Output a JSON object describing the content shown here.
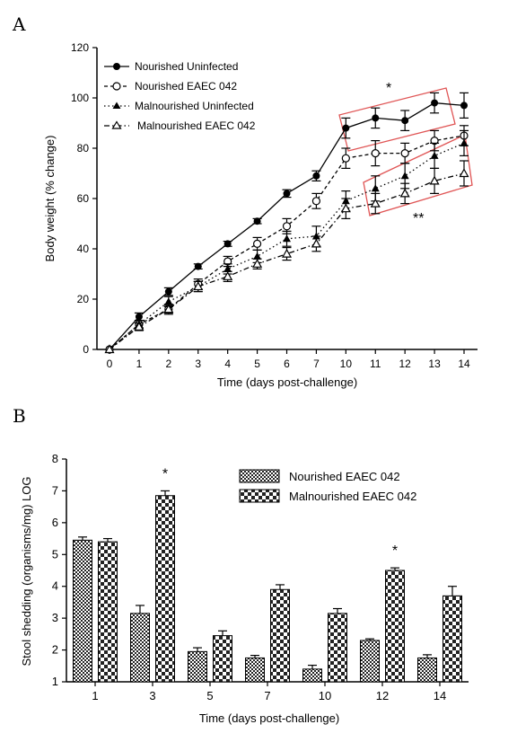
{
  "chart_data": [
    {
      "panel": "A",
      "type": "line",
      "xlabel": "Time (days post-challenge)",
      "ylabel": "Body weight (% change)",
      "categories": [
        "0",
        "1",
        "2",
        "3",
        "4",
        "5",
        "6",
        "7",
        "10",
        "11",
        "12",
        "13",
        "14"
      ],
      "ylim": [
        0,
        120
      ],
      "yticks": [
        0,
        20,
        40,
        60,
        80,
        100,
        120
      ],
      "series": [
        {
          "name": "Nourished Uninfected",
          "marker": "filled-circle",
          "line": "solid",
          "values": [
            0,
            13,
            23,
            33,
            42,
            51,
            62,
            69,
            88,
            92,
            91,
            98,
            97
          ],
          "errors": [
            0,
            1.5,
            1.5,
            1,
            1,
            1,
            1.5,
            2,
            4,
            4,
            4,
            4,
            5
          ]
        },
        {
          "name": "Nourished EAEC 042",
          "marker": "open-circle",
          "line": "dashed",
          "values": [
            0,
            10,
            16,
            26,
            35,
            42,
            49,
            59,
            76,
            78,
            78,
            83,
            85
          ],
          "errors": [
            0,
            1.5,
            1.5,
            2,
            2,
            2.5,
            3,
            3,
            4,
            5,
            4,
            4,
            4
          ]
        },
        {
          "name": "Malnourished Uninfected",
          "marker": "filled-triangle",
          "line": "dotted",
          "values": [
            0,
            10,
            19,
            25,
            32,
            37,
            44,
            45,
            59,
            64,
            69,
            77,
            82
          ],
          "errors": [
            0,
            1.5,
            2,
            2,
            2,
            2.5,
            3,
            4,
            4,
            5,
            5,
            5,
            5
          ]
        },
        {
          "name": "Malnourished EAEC 042",
          "marker": "open-triangle",
          "line": "dash-dot",
          "values": [
            0,
            9,
            16,
            25,
            29,
            34,
            38,
            42,
            56,
            58,
            62,
            67,
            70
          ],
          "errors": [
            0,
            1.5,
            2,
            2,
            2,
            2,
            2.5,
            3,
            4,
            4,
            4,
            5,
            5
          ]
        }
      ],
      "annotations": [
        "*",
        "**"
      ],
      "legend": "top-left"
    },
    {
      "panel": "B",
      "type": "bar",
      "xlabel": "Time (days post-challenge)",
      "ylabel": "Stool shedding (organisms/mg) LOG",
      "categories": [
        "1",
        "3",
        "5",
        "7",
        "10",
        "12",
        "14"
      ],
      "ylim": [
        1,
        8
      ],
      "yticks": [
        1,
        2,
        3,
        4,
        5,
        6,
        7,
        8
      ],
      "series": [
        {
          "name": "Nourished EAEC 042",
          "pattern": "dense-check",
          "values": [
            5.45,
            3.15,
            1.95,
            1.75,
            1.4,
            2.3,
            1.75
          ],
          "errors": [
            0.1,
            0.25,
            0.12,
            0.08,
            0.12,
            0.05,
            0.1
          ]
        },
        {
          "name": "Malnourished EAEC 042",
          "pattern": "large-check",
          "values": [
            5.4,
            6.85,
            2.45,
            3.9,
            3.15,
            4.5,
            3.7
          ],
          "errors": [
            0.1,
            0.15,
            0.15,
            0.15,
            0.15,
            0.08,
            0.3
          ]
        }
      ],
      "annotations": [
        "*",
        "*"
      ],
      "annotation_categories": [
        "3",
        "12"
      ],
      "legend": "top-right"
    }
  ],
  "labels": {
    "panel_a": "A",
    "panel_b": "B"
  },
  "colors": {
    "highlight_box": "#e05555",
    "ink": "#000000"
  }
}
